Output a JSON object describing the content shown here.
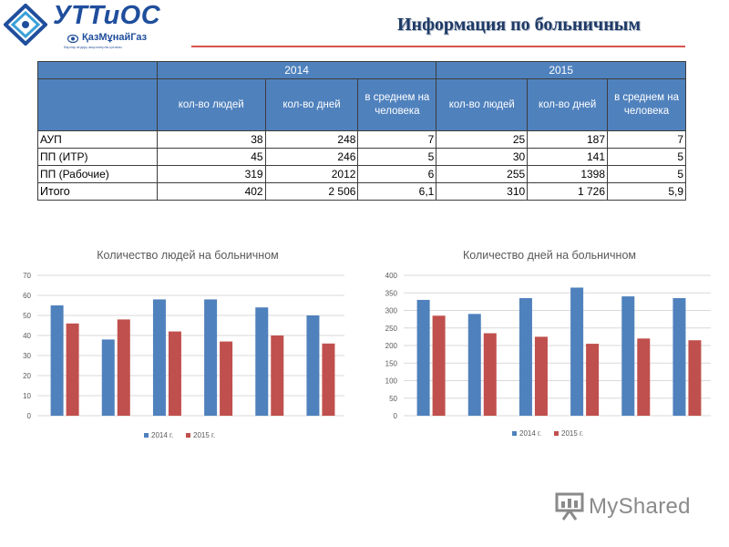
{
  "logo": {
    "name": "УТТиОС",
    "sub": "ҚазМұнайГаз",
    "tagline": "барлау өндіру акционерлік қоғамы"
  },
  "title": "Информация по больничным",
  "table": {
    "years": [
      "2014",
      "2015"
    ],
    "column_headers": [
      "кол-во людей",
      "кол-во дней",
      "в среднем на человека",
      "кол-во людей",
      "кол-во дней",
      "в среднем на человека"
    ],
    "rows": [
      {
        "label": "АУП",
        "cells": [
          "38",
          "248",
          "7",
          "25",
          "187",
          "7"
        ]
      },
      {
        "label": "ПП (ИТР)",
        "cells": [
          "45",
          "246",
          "5",
          "30",
          "141",
          "5"
        ]
      },
      {
        "label": "ПП (Рабочие)",
        "cells": [
          "319",
          "2012",
          "6",
          "255",
          "1398",
          "5"
        ]
      },
      {
        "label": "Итого",
        "cells": [
          "402",
          "2 506",
          "6,1",
          "310",
          "1 726",
          "5,9"
        ]
      }
    ]
  },
  "chart_data": [
    {
      "type": "bar",
      "title": "Количество людей на больничном",
      "xlabel": "",
      "ylabel": "",
      "ylim": [
        0,
        70
      ],
      "yticks": [
        0,
        10,
        20,
        30,
        40,
        50,
        60,
        70
      ],
      "categories": [
        "",
        "",
        "",
        "",
        "",
        ""
      ],
      "series": [
        {
          "name": "2014 г.",
          "color": "#4f81bd",
          "values": [
            55,
            38,
            58,
            58,
            54,
            50
          ]
        },
        {
          "name": "2015 г.",
          "color": "#c0504d",
          "values": [
            46,
            48,
            42,
            37,
            40,
            36
          ]
        }
      ],
      "grid": true,
      "legend": "bottom"
    },
    {
      "type": "bar",
      "title": "Количество дней на больничном",
      "xlabel": "",
      "ylabel": "",
      "ylim": [
        0,
        400
      ],
      "yticks": [
        0,
        50,
        100,
        150,
        200,
        250,
        300,
        350,
        400
      ],
      "categories": [
        "",
        "",
        "",
        "",
        "",
        ""
      ],
      "series": [
        {
          "name": "2014 г.",
          "color": "#4f81bd",
          "values": [
            330,
            290,
            335,
            365,
            340,
            335
          ]
        },
        {
          "name": "2015 г.",
          "color": "#c0504d",
          "values": [
            285,
            235,
            225,
            205,
            220,
            215
          ]
        }
      ],
      "grid": true,
      "legend": "bottom"
    }
  ],
  "watermark": "MyShared",
  "colors": {
    "header_blue": "#4f81bd",
    "title_rule": "#d9534f",
    "logo_blue": "#1f4e9c"
  }
}
